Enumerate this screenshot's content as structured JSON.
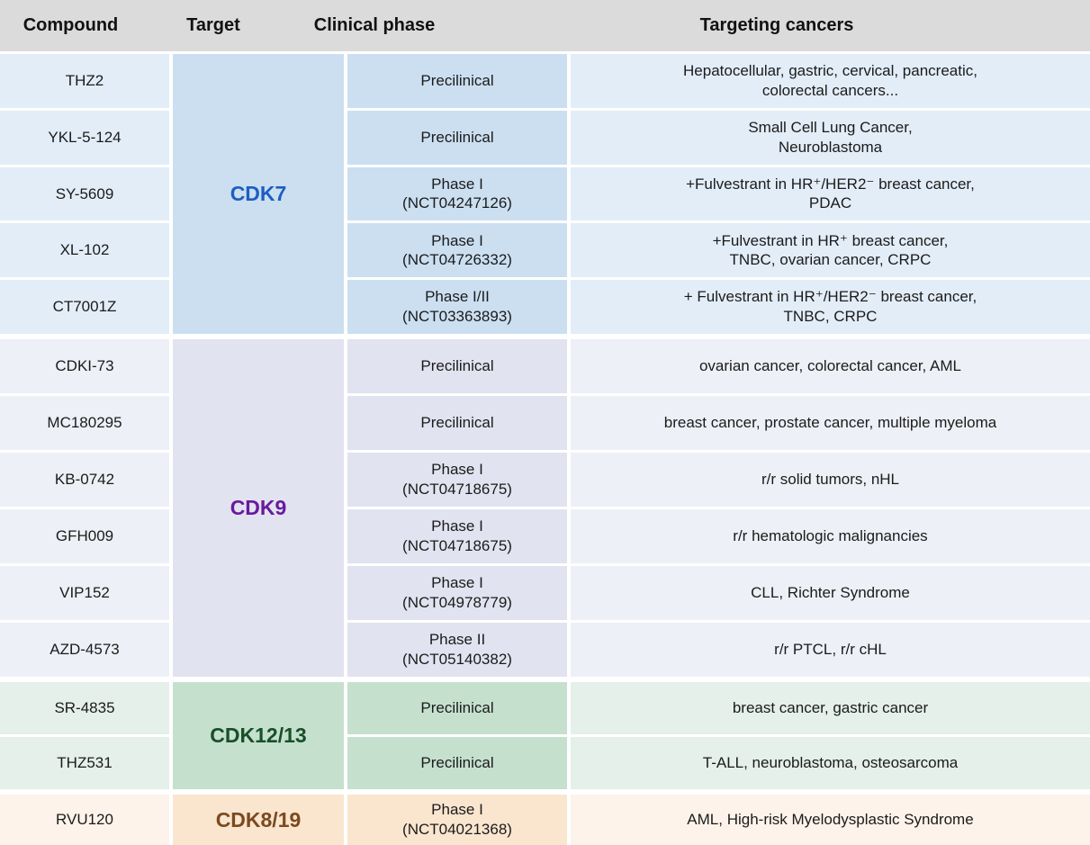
{
  "header": {
    "columns": [
      {
        "label": "Compound"
      },
      {
        "label": "Target"
      },
      {
        "label": "Clinical phase"
      },
      {
        "label": "Targeting cancers"
      }
    ]
  },
  "groups": [
    {
      "target": "CDK7",
      "colors": {
        "cell": "#e3edf8",
        "panel": "#cbdff1",
        "label": "#1d5ec2"
      },
      "rows": [
        {
          "compound": "THZ2",
          "phase": "Precilinical",
          "cancers": "Hepatocellular, gastric, cervical, pancreatic,\ncolorectal cancers..."
        },
        {
          "compound": "YKL-5-124",
          "phase": "Precilinical",
          "cancers": "Small Cell Lung Cancer,\nNeuroblastoma"
        },
        {
          "compound": "SY-5609",
          "phase": "Phase I\n(NCT04247126)",
          "cancers": "+Fulvestrant in HR⁺/HER2⁻ breast cancer,\nPDAC"
        },
        {
          "compound": "XL-102",
          "phase": "Phase I\n(NCT04726332)",
          "cancers": "+Fulvestrant in HR⁺ breast cancer,\nTNBC, ovarian cancer, CRPC"
        },
        {
          "compound": "CT7001Z",
          "phase": "Phase I/II\n(NCT03363893)",
          "cancers": "+ Fulvestrant in HR⁺/HER2⁻ breast cancer,\nTNBC, CRPC"
        }
      ]
    },
    {
      "target": "CDK9",
      "colors": {
        "cell": "#eef0f7",
        "panel": "#e2e3f0",
        "label": "#681a9d"
      },
      "rows": [
        {
          "compound": "CDKI-73",
          "phase": "Precilinical",
          "cancers": "ovarian cancer, colorectal cancer, AML"
        },
        {
          "compound": "MC180295",
          "phase": "Precilinical",
          "cancers": "breast cancer, prostate cancer, multiple myeloma"
        },
        {
          "compound": "KB-0742",
          "phase": "Phase I\n(NCT04718675)",
          "cancers": "r/r solid tumors, nHL"
        },
        {
          "compound": "GFH009",
          "phase": "Phase I\n(NCT04718675)",
          "cancers": "r/r hematologic malignancies"
        },
        {
          "compound": "VIP152",
          "phase": "Phase I\n(NCT04978779)",
          "cancers": "CLL, Richter Syndrome"
        },
        {
          "compound": "AZD-4573",
          "phase": "Phase II\n(NCT05140382)",
          "cancers": "r/r PTCL, r/r cHL"
        }
      ]
    },
    {
      "target": "CDK12/13",
      "colors": {
        "cell": "#e4f0e9",
        "panel": "#c6e0ce",
        "label": "#184f29"
      },
      "rows": [
        {
          "compound": "SR-4835",
          "phase": "Precilinical",
          "cancers": "breast cancer, gastric cancer"
        },
        {
          "compound": "THZ531",
          "phase": "Precilinical",
          "cancers": "T-ALL, neuroblastoma, osteosarcoma"
        }
      ]
    },
    {
      "target": "CDK8/19",
      "colors": {
        "cell": "#fdf3ea",
        "panel": "#fae5cf",
        "label": "#7b4a1e"
      },
      "rows": [
        {
          "compound": "RVU120",
          "phase": "Phase I\n(NCT04021368)",
          "cancers": "AML, High-risk Myelodysplastic Syndrome"
        }
      ]
    }
  ]
}
